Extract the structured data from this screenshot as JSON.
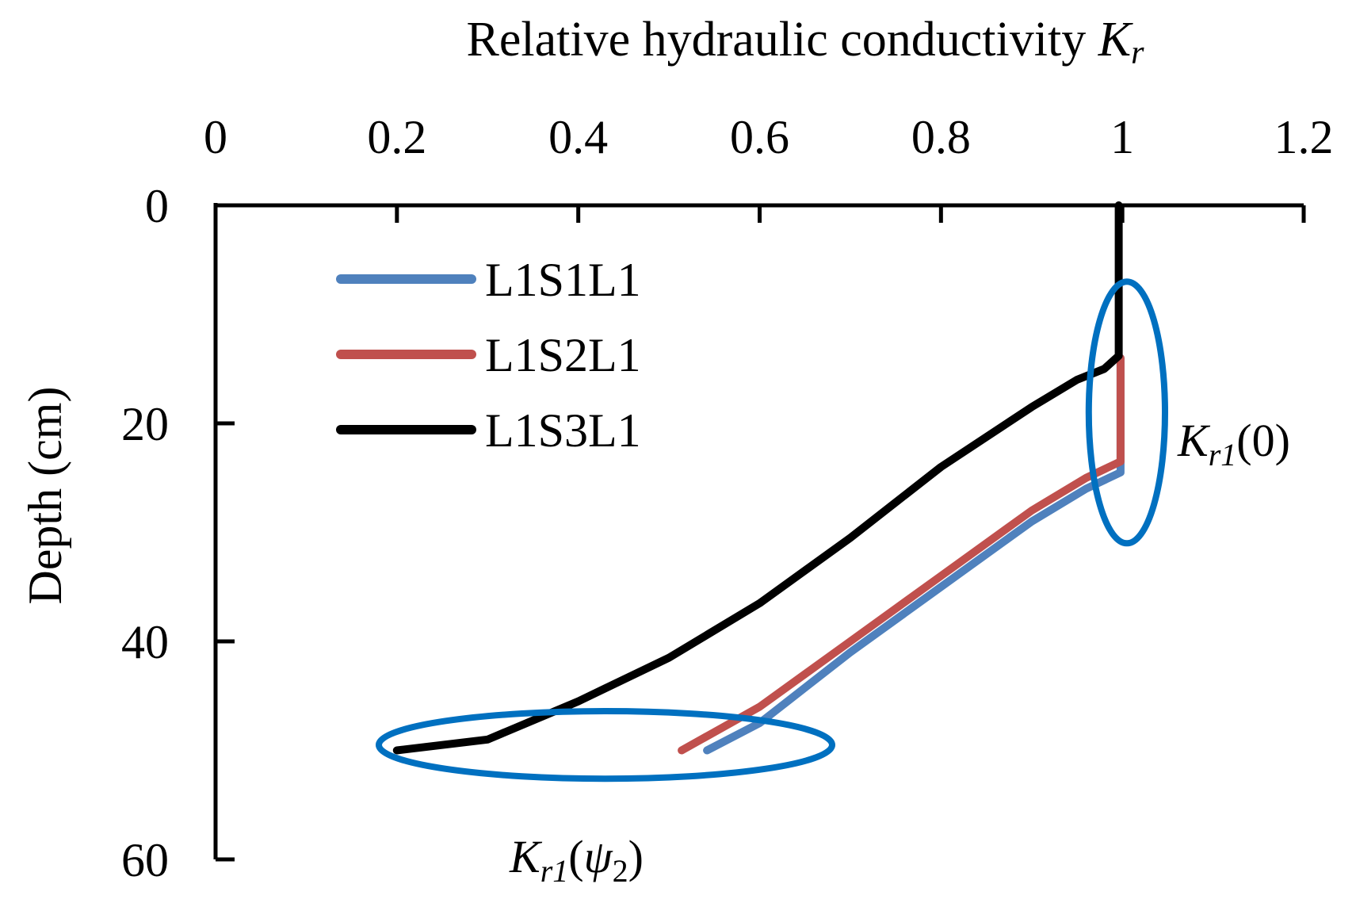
{
  "chart_data": {
    "type": "line",
    "title": "",
    "xlabel": "Relative hydraulic conductivity",
    "xlabel_symbol": "K",
    "xlabel_symbol_sub": "r",
    "ylabel": "Depth (cm)",
    "x_axis_position": "top",
    "y_axis_inverted": true,
    "xlim": [
      0,
      1.2
    ],
    "ylim": [
      0,
      60
    ],
    "xticks": [
      0,
      0.2,
      0.4,
      0.6,
      0.8,
      1,
      1.2
    ],
    "yticks": [
      0,
      20,
      40,
      60
    ],
    "grid": false,
    "legend_position": "top-left",
    "series": [
      {
        "name": "L1S1L1",
        "color": "#4f81bd",
        "points": [
          [
            0.998,
            14
          ],
          [
            0.998,
            24.5
          ],
          [
            0.96,
            26
          ],
          [
            0.9,
            29
          ],
          [
            0.8,
            35
          ],
          [
            0.7,
            41
          ],
          [
            0.6,
            47.5
          ],
          [
            0.542,
            50
          ]
        ]
      },
      {
        "name": "L1S2L1",
        "color": "#c0504d",
        "points": [
          [
            0.998,
            14
          ],
          [
            0.998,
            23.5
          ],
          [
            0.96,
            25
          ],
          [
            0.9,
            28
          ],
          [
            0.8,
            34
          ],
          [
            0.7,
            40
          ],
          [
            0.6,
            46
          ],
          [
            0.514,
            50
          ]
        ]
      },
      {
        "name": "L1S3L1",
        "color": "#000000",
        "points": [
          [
            0.996,
            0
          ],
          [
            0.996,
            13.8
          ],
          [
            0.98,
            15
          ],
          [
            0.95,
            16
          ],
          [
            0.9,
            18.5
          ],
          [
            0.8,
            24
          ],
          [
            0.7,
            30.5
          ],
          [
            0.6,
            36.5
          ],
          [
            0.5,
            41.5
          ],
          [
            0.4,
            45.5
          ],
          [
            0.3,
            49
          ],
          [
            0.2,
            50
          ]
        ]
      }
    ],
    "annotations": [
      {
        "name": "K_r1(0)",
        "main": "K",
        "sub": "r1",
        "suffix": "(0)",
        "ellipse_color": "#0070c0",
        "ellipse_center": [
          1.005,
          19
        ],
        "ellipse_radius_x": 0.042,
        "ellipse_radius_y": 12
      },
      {
        "name": "K_r1(psi_2)",
        "main": "K",
        "sub": "r1",
        "open": "(",
        "psi": "ψ",
        "psi_sub": "2",
        "close": ")",
        "ellipse_color": "#0070c0",
        "ellipse_center": [
          0.43,
          49.5
        ],
        "ellipse_radius_x": 0.25,
        "ellipse_radius_y": 3.1
      }
    ]
  }
}
